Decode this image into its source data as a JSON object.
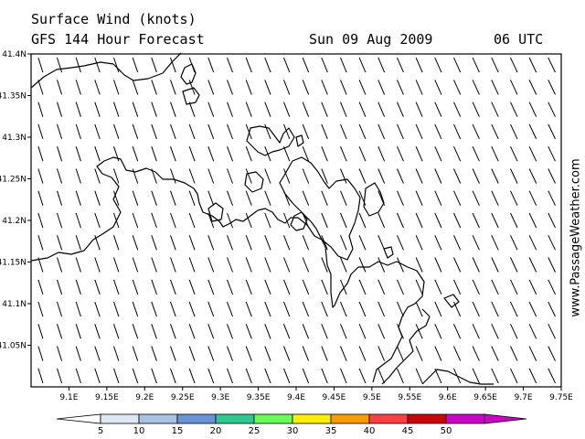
{
  "header": {
    "line1": "Surface Wind (knots)",
    "line2": "GFS 144 Hour Forecast",
    "date": "Sun 09 Aug 2009",
    "time": "06 UTC"
  },
  "credit": "www.PassageWeather.com",
  "map": {
    "lon_range": [
      9.05,
      9.75
    ],
    "lat_range": [
      41.0,
      41.4
    ],
    "lon_ticks": [
      "9.1E",
      "9.15E",
      "9.2E",
      "9.25E",
      "9.3E",
      "9.35E",
      "9.4E",
      "9.45E",
      "9.5E",
      "9.55E",
      "9.6E",
      "9.65E",
      "9.7E",
      "9.75E"
    ],
    "lat_ticks": [
      "41.4N",
      "41.35N",
      "41.3N",
      "41.25N",
      "41.2N",
      "41.15N",
      "41.1N",
      "41.05N"
    ],
    "wind_direction_from_deg": 340,
    "wind_speed_class_knots": "under 5"
  },
  "colorbar": {
    "labels": [
      "5",
      "10",
      "15",
      "20",
      "25",
      "30",
      "35",
      "40",
      "45",
      "50"
    ],
    "colors": [
      "#ffffff",
      "#dde8f4",
      "#a8c2e2",
      "#6a94d8",
      "#2fc890",
      "#66ff55",
      "#ffee00",
      "#ff9900",
      "#ff4040",
      "#cc0000",
      "#cc00cc"
    ]
  }
}
